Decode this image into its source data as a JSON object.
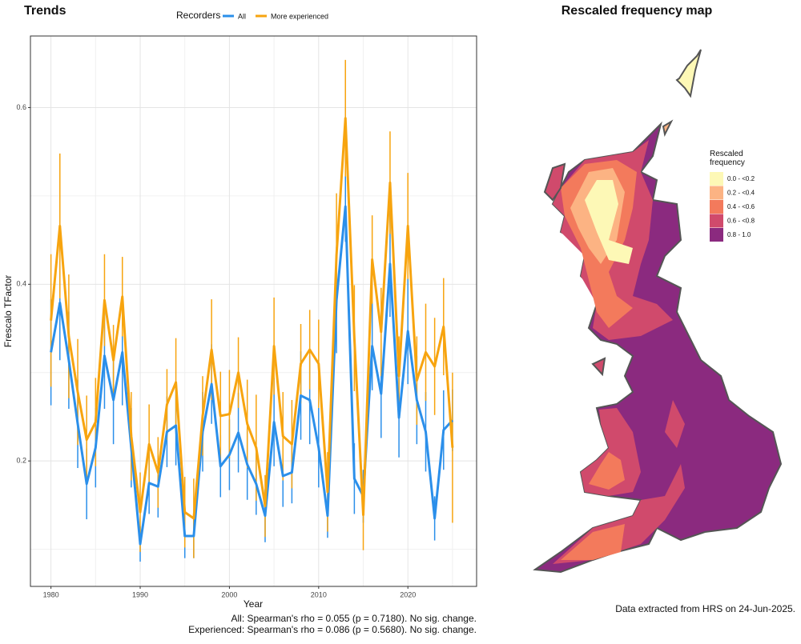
{
  "chart_data": {
    "type": "line",
    "title": "Trends",
    "xlabel": "Year",
    "ylabel": "Frescalo TFactor",
    "legend_title": "Recorders",
    "legend_position": "top",
    "grid": true,
    "xlim": [
      1977.7,
      2027.7
    ],
    "xticks": [
      1980,
      1990,
      2000,
      2010,
      2020
    ],
    "ylim": [
      0.058,
      0.681
    ],
    "yticks": [
      0.2,
      0.4,
      0.6
    ],
    "x": [
      1980,
      1981,
      1982,
      1983,
      1984,
      1985,
      1986,
      1987,
      1988,
      1989,
      1990,
      1991,
      1992,
      1993,
      1994,
      1995,
      1996,
      1997,
      1998,
      1999,
      2000,
      2001,
      2002,
      2003,
      2004,
      2005,
      2006,
      2007,
      2008,
      2009,
      2010,
      2011,
      2012,
      2013,
      2014,
      2015,
      2016,
      2017,
      2018,
      2019,
      2020,
      2021,
      2022,
      2023,
      2024,
      2025
    ],
    "series": [
      {
        "name": "All",
        "color": "#2b8fea",
        "values": [
          0.323,
          0.379,
          0.314,
          0.242,
          0.174,
          0.215,
          0.319,
          0.269,
          0.323,
          0.215,
          0.106,
          0.175,
          0.171,
          0.233,
          0.24,
          0.115,
          0.115,
          0.233,
          0.287,
          0.194,
          0.207,
          0.232,
          0.196,
          0.174,
          0.138,
          0.244,
          0.183,
          0.187,
          0.274,
          0.269,
          0.215,
          0.138,
          0.382,
          0.488,
          0.18,
          0.16,
          0.33,
          0.276,
          0.423,
          0.249,
          0.347,
          0.269,
          0.233,
          0.135,
          0.235,
          0.246
        ],
        "errors": [
          0.06,
          0.065,
          0.055,
          0.05,
          0.04,
          0.045,
          0.06,
          0.05,
          0.06,
          0.045,
          0.02,
          0.035,
          0.035,
          0.04,
          0.045,
          0.025,
          0.025,
          0.045,
          0.045,
          0.035,
          0.04,
          0.045,
          0.04,
          0.035,
          0.03,
          0.05,
          0.035,
          0.035,
          0.05,
          0.05,
          0.045,
          0.025,
          0.06,
          0.04,
          0.04,
          0.03,
          0.05,
          0.05,
          0.06,
          0.045,
          0.06,
          0.05,
          0.045,
          0.025,
          0.045,
          0.035
        ]
      },
      {
        "name": "More experienced",
        "color": "#f7a40f",
        "values": [
          0.359,
          0.466,
          0.341,
          0.278,
          0.224,
          0.244,
          0.382,
          0.314,
          0.386,
          0.228,
          0.142,
          0.219,
          0.187,
          0.264,
          0.289,
          0.142,
          0.135,
          0.251,
          0.326,
          0.251,
          0.253,
          0.3,
          0.242,
          0.215,
          0.149,
          0.33,
          0.228,
          0.219,
          0.31,
          0.326,
          0.31,
          0.165,
          0.433,
          0.588,
          0.339,
          0.139,
          0.428,
          0.346,
          0.515,
          0.296,
          0.466,
          0.291,
          0.323,
          0.307,
          0.352,
          0.215
        ],
        "errors": [
          0.075,
          0.082,
          0.07,
          0.06,
          0.05,
          0.05,
          0.052,
          0.04,
          0.045,
          0.05,
          0.045,
          0.045,
          0.04,
          0.04,
          0.05,
          0.04,
          0.045,
          0.045,
          0.057,
          0.05,
          0.05,
          0.04,
          0.05,
          0.06,
          0.035,
          0.055,
          0.05,
          0.05,
          0.045,
          0.045,
          0.05,
          0.045,
          0.07,
          0.066,
          0.06,
          0.04,
          0.05,
          0.05,
          0.058,
          0.045,
          0.06,
          0.05,
          0.055,
          0.055,
          0.055,
          0.085
        ]
      }
    ],
    "annotations": [
      "All: Spearman's rho = 0.055 (p = 0.7180). No sig. change.",
      "Experienced: Spearman's rho = 0.086 (p = 0.5680). No sig. change."
    ]
  },
  "map": {
    "title": "Rescaled frequency map",
    "legend_title": "Rescaled frequency",
    "legend": [
      {
        "label": "0.0 - <0.2",
        "color": "#fdf8b6"
      },
      {
        "label": "0.2 - <0.4",
        "color": "#fcb383"
      },
      {
        "label": "0.4 - <0.6",
        "color": "#f37a5c"
      },
      {
        "label": "0.6 - <0.8",
        "color": "#d04a6c"
      },
      {
        "label": "0.8 - 1.0",
        "color": "#8b2a7f"
      }
    ],
    "footnote": "Data extracted from HRS on 24-Jun-2025."
  }
}
